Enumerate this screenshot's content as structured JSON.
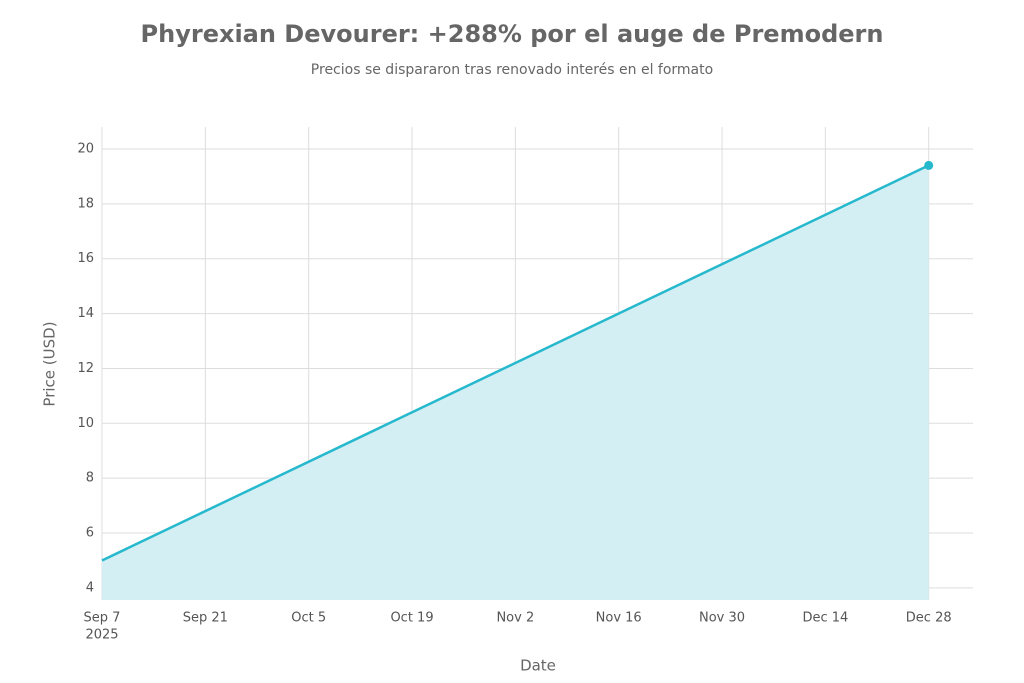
{
  "chart_data": {
    "type": "line",
    "title": "Phyrexian Devourer: +288% por el auge de Premodern",
    "subtitle": "Precios se dispararon tras renovado interés en el formato",
    "x_label": "Date",
    "y_label": "Price (USD)",
    "x": [
      "2025-09-07",
      "2025-12-28"
    ],
    "series": [
      {
        "name": "Phyrexian Devourer",
        "color": "#26b8cc",
        "fill": "#d3eff4",
        "values": [
          5,
          19.4
        ]
      }
    ],
    "marker": "last",
    "xlim": [
      "2025-09-07",
      "2026-01-03"
    ],
    "xticks": [
      {
        "value": "2025-09-07",
        "label": "Sep 7"
      },
      {
        "value": "2025-09-21",
        "label": "Sep 21"
      },
      {
        "value": "2025-10-05",
        "label": "Oct 5"
      },
      {
        "value": "2025-10-19",
        "label": "Oct 19"
      },
      {
        "value": "2025-11-02",
        "label": "Nov 2"
      },
      {
        "value": "2025-11-16",
        "label": "Nov 16"
      },
      {
        "value": "2025-11-30",
        "label": "Nov 30"
      },
      {
        "value": "2025-12-14",
        "label": "Dec 14"
      },
      {
        "value": "2025-12-28",
        "label": "Dec 28"
      }
    ],
    "xtick_year": "2025",
    "ylim": [
      3.56,
      20.8
    ],
    "yticks": [
      4,
      6,
      8,
      10,
      12,
      14,
      16,
      18,
      20
    ],
    "grid": true
  }
}
